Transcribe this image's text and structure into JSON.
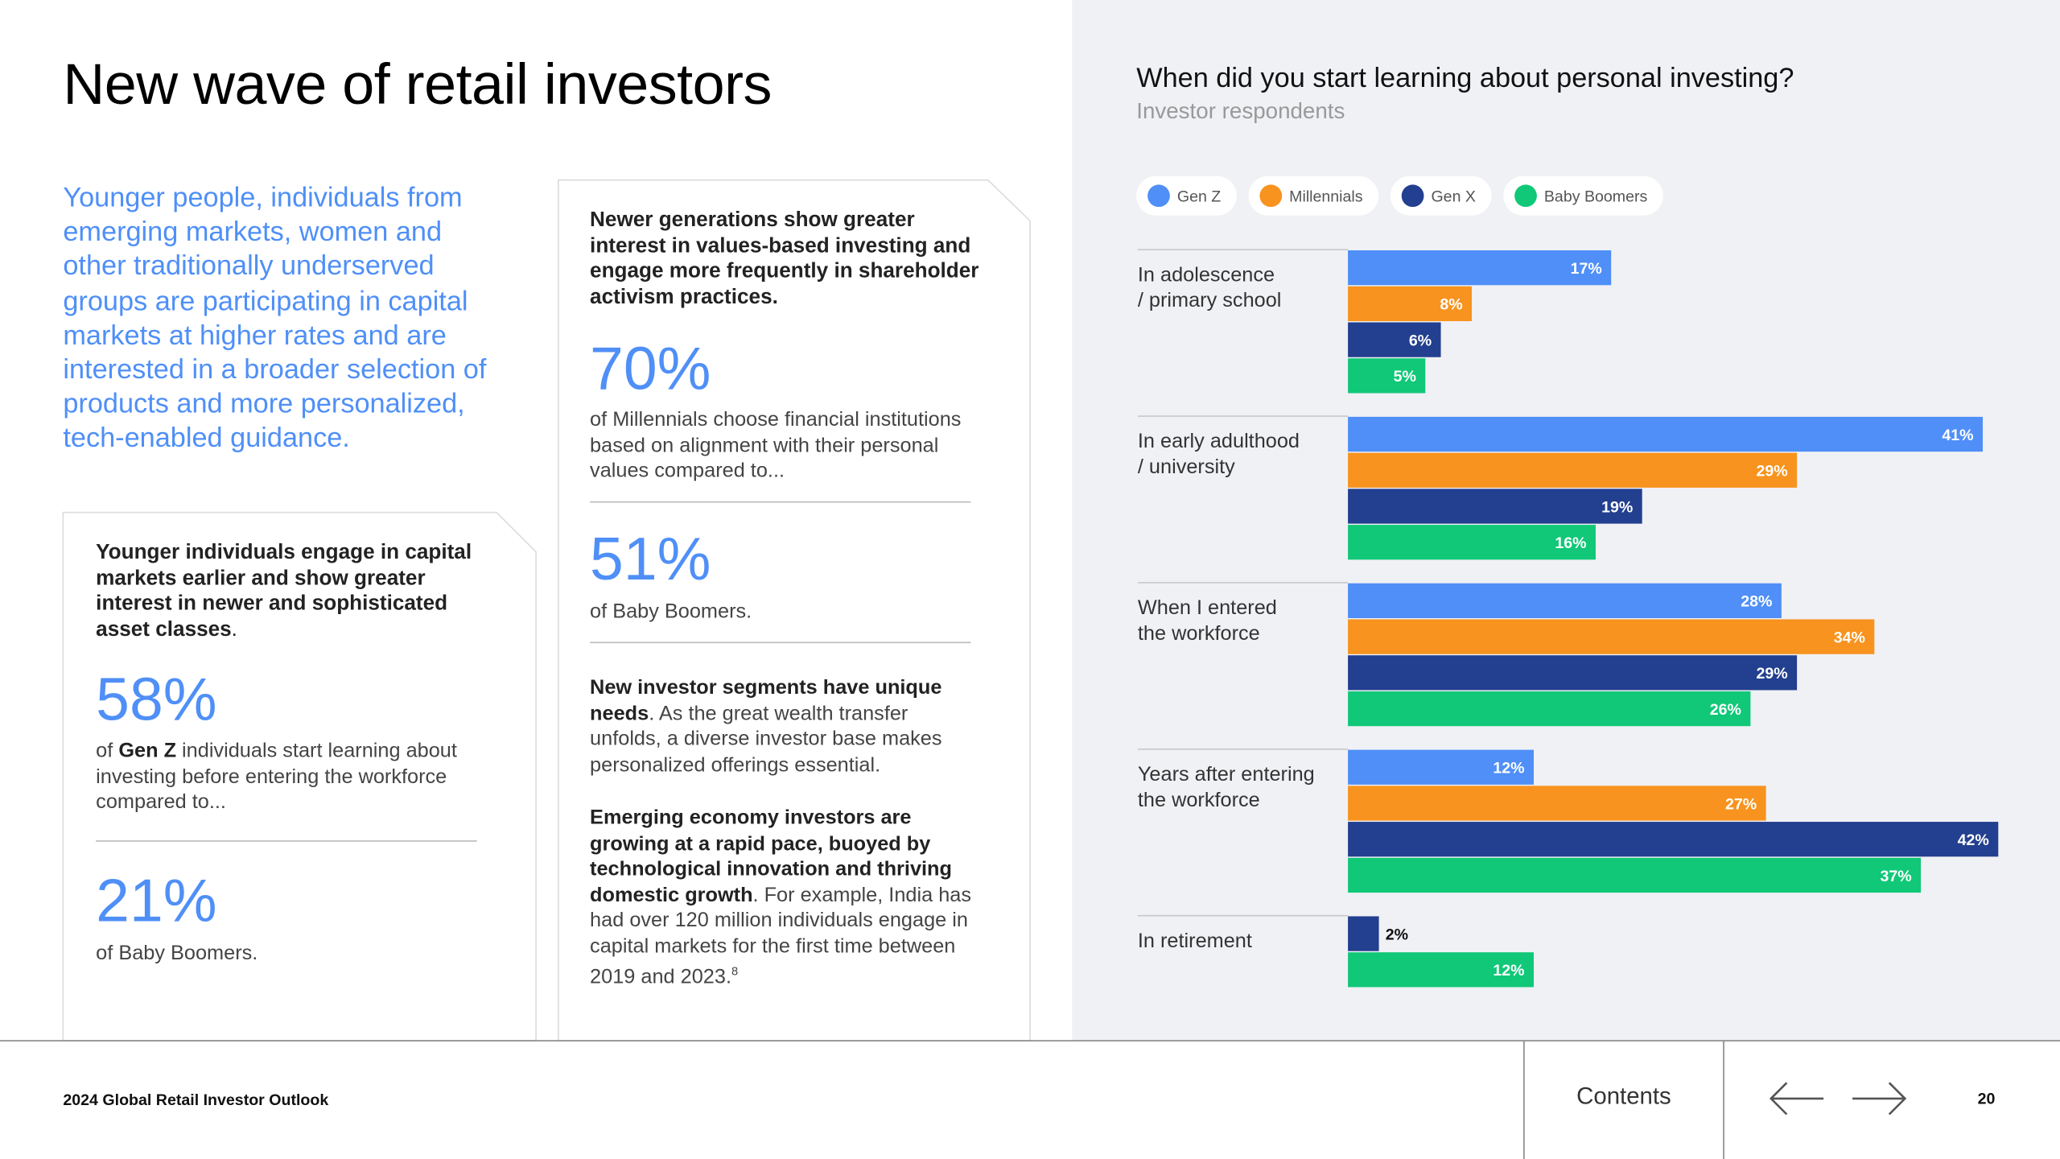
{
  "page": {
    "title": "New wave of retail investors",
    "intro": "Younger people, individuals from emerging markets, women and other traditionally underserved groups are participating in capital markets at higher rates and are interested in a broader selection of products and more personalized, tech-enabled guidance.",
    "card1": {
      "heading": [
        "Younger individuals engage in capital markets earlier and show greater interest in newer and sophisticated asset classes",
        "."
      ],
      "stat1": "58%",
      "stat1_text": [
        "of ",
        "Gen Z",
        " individuals start learning about investing before entering the workforce compared to..."
      ],
      "stat2": "21%",
      "stat2_text": "of Baby Boomers."
    },
    "card2": {
      "heading": "Newer generations show greater interest in values-based investing and engage more frequently in shareholder activism practices.",
      "stat1": "70%",
      "stat1_text": "of Millennials choose financial institutions based on alignment with their personal values compared to...",
      "stat2": "51%",
      "stat2_text": "of Baby Boomers.",
      "para1": [
        "New investor segments have unique needs",
        ". As the great wealth transfer unfolds, a diverse investor base makes personalized offerings essential."
      ],
      "para2": [
        "Emerging economy investors are growing at a rapid pace, buoyed by technological innovation and thriving domestic growth",
        ". For example, India has had over 120 million individuals engage in capital markets for the first time between 2019 and 2023.",
        "8"
      ]
    },
    "footer": {
      "publication": "2024 Global Retail Investor Outlook",
      "contents": "Contents",
      "page_number": "20"
    }
  },
  "chart_data": {
    "type": "bar",
    "orientation": "horizontal",
    "title": "When did you start learning about personal investing?",
    "subtitle": "Investor respondents",
    "categories": [
      "In adolescence\n/ primary school",
      "In early adulthood\n/ university",
      "When I entered\nthe workforce",
      "Years after entering\nthe workforce",
      "In retirement"
    ],
    "xlim": [
      0,
      42
    ],
    "series": [
      {
        "name": "Gen Z",
        "color": "#4f8ff7",
        "values": [
          17,
          41,
          28,
          12,
          null
        ],
        "value_labels": [
          "17%",
          "41%",
          "28%",
          "12%",
          null
        ]
      },
      {
        "name": "Millennials",
        "color": "#f7931e",
        "values": [
          8,
          29,
          34,
          27,
          null
        ],
        "value_labels": [
          "8%",
          "29%",
          "34%",
          "27%",
          null
        ]
      },
      {
        "name": "Gen X",
        "color": "#233f8f",
        "values": [
          6,
          19,
          29,
          42,
          2
        ],
        "value_labels": [
          "6%",
          "19%",
          "29%",
          "42%",
          "2%"
        ]
      },
      {
        "name": "Baby Boomers",
        "color": "#10c878",
        "values": [
          5,
          16,
          26,
          37,
          12
        ],
        "value_labels": [
          "5%",
          "16%",
          "26%",
          "37%",
          "12%"
        ]
      }
    ]
  }
}
